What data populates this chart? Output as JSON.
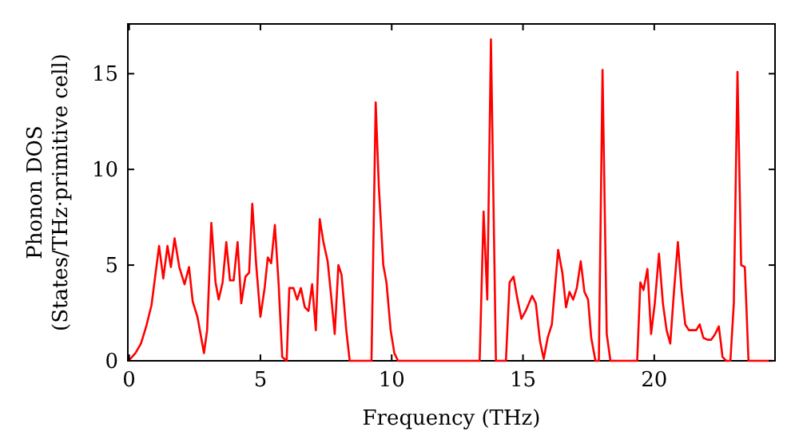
{
  "chart_data": {
    "type": "line",
    "xlabel": "Frequency (THz)",
    "ylabel": "Phonon DOS\n(States/THz·primitive cell)",
    "xlim": [
      -0.05,
      24.6
    ],
    "ylim": [
      0,
      17.6
    ],
    "xticks": [
      0,
      5,
      10,
      15,
      20
    ],
    "yticks": [
      0,
      5,
      10,
      15
    ],
    "grid": false,
    "marker": "none",
    "line_style": "solid",
    "series": [
      {
        "color": "#ff0000",
        "x": [
          0,
          0.04,
          0.24,
          0.45,
          0.65,
          0.85,
          1.14,
          1.3,
          1.46,
          1.59,
          1.73,
          1.91,
          2.11,
          2.28,
          2.42,
          2.6,
          2.85,
          2.97,
          3.13,
          3.29,
          3.41,
          3.56,
          3.7,
          3.84,
          3.98,
          4.13,
          4.27,
          4.43,
          4.57,
          4.69,
          4.84,
          5.0,
          5.16,
          5.28,
          5.41,
          5.55,
          5.69,
          5.83,
          6.0,
          6.1,
          6.26,
          6.4,
          6.54,
          6.69,
          6.83,
          6.97,
          7.11,
          7.26,
          7.4,
          7.56,
          7.7,
          7.83,
          7.97,
          8.09,
          8.27,
          8.4,
          9.23,
          9.39,
          9.51,
          9.68,
          9.8,
          9.96,
          10.1,
          10.24,
          13.35,
          13.5,
          13.64,
          13.78,
          13.97,
          14.35,
          14.49,
          14.64,
          14.78,
          14.94,
          15.1,
          15.35,
          15.49,
          15.65,
          15.79,
          15.94,
          16.1,
          16.34,
          16.5,
          16.64,
          16.77,
          16.91,
          17.05,
          17.2,
          17.34,
          17.48,
          17.6,
          17.76,
          17.89,
          18.03,
          18.19,
          18.33,
          19.35,
          19.47,
          19.59,
          19.74,
          19.88,
          20.02,
          20.18,
          20.33,
          20.47,
          20.61,
          20.75,
          20.9,
          21.04,
          21.18,
          21.32,
          21.46,
          21.6,
          21.73,
          21.87,
          22.03,
          22.17,
          22.32,
          22.46,
          22.6,
          22.74,
          22.9,
          23.03,
          23.17,
          23.31,
          23.45,
          23.59,
          24.5
        ],
        "values": [
          0.1,
          0.1,
          0.4,
          0.9,
          1.8,
          2.9,
          6.0,
          4.3,
          6.0,
          4.9,
          6.4,
          4.9,
          4.0,
          4.9,
          3.1,
          2.3,
          0.4,
          1.6,
          7.2,
          4.1,
          3.2,
          4.1,
          6.2,
          4.2,
          4.2,
          6.2,
          3.0,
          4.4,
          4.6,
          8.2,
          5.0,
          2.3,
          3.8,
          5.4,
          5.1,
          7.1,
          4.1,
          0.2,
          0,
          3.8,
          3.8,
          3.2,
          3.8,
          2.8,
          2.6,
          4.0,
          1.6,
          7.4,
          6.2,
          5.2,
          3.3,
          1.4,
          5.0,
          4.5,
          1.6,
          0,
          0,
          13.5,
          9.1,
          5.0,
          4.1,
          1.6,
          0.4,
          0,
          0,
          7.8,
          3.2,
          16.8,
          0,
          0,
          4.1,
          4.4,
          3.3,
          2.2,
          2.6,
          3.4,
          3.0,
          1.0,
          0.1,
          1.2,
          1.9,
          5.8,
          4.6,
          2.8,
          3.6,
          3.2,
          3.8,
          5.2,
          3.6,
          3.2,
          1.2,
          0,
          0,
          15.2,
          1.4,
          0,
          0,
          4.1,
          3.7,
          4.8,
          1.4,
          3.0,
          5.6,
          3.0,
          1.6,
          0.9,
          3.6,
          6.2,
          3.7,
          1.9,
          1.6,
          1.6,
          1.6,
          1.9,
          1.2,
          1.1,
          1.1,
          1.4,
          1.8,
          0.2,
          0,
          0,
          3.0,
          15.1,
          5.0,
          4.9,
          0,
          0
        ]
      }
    ]
  }
}
